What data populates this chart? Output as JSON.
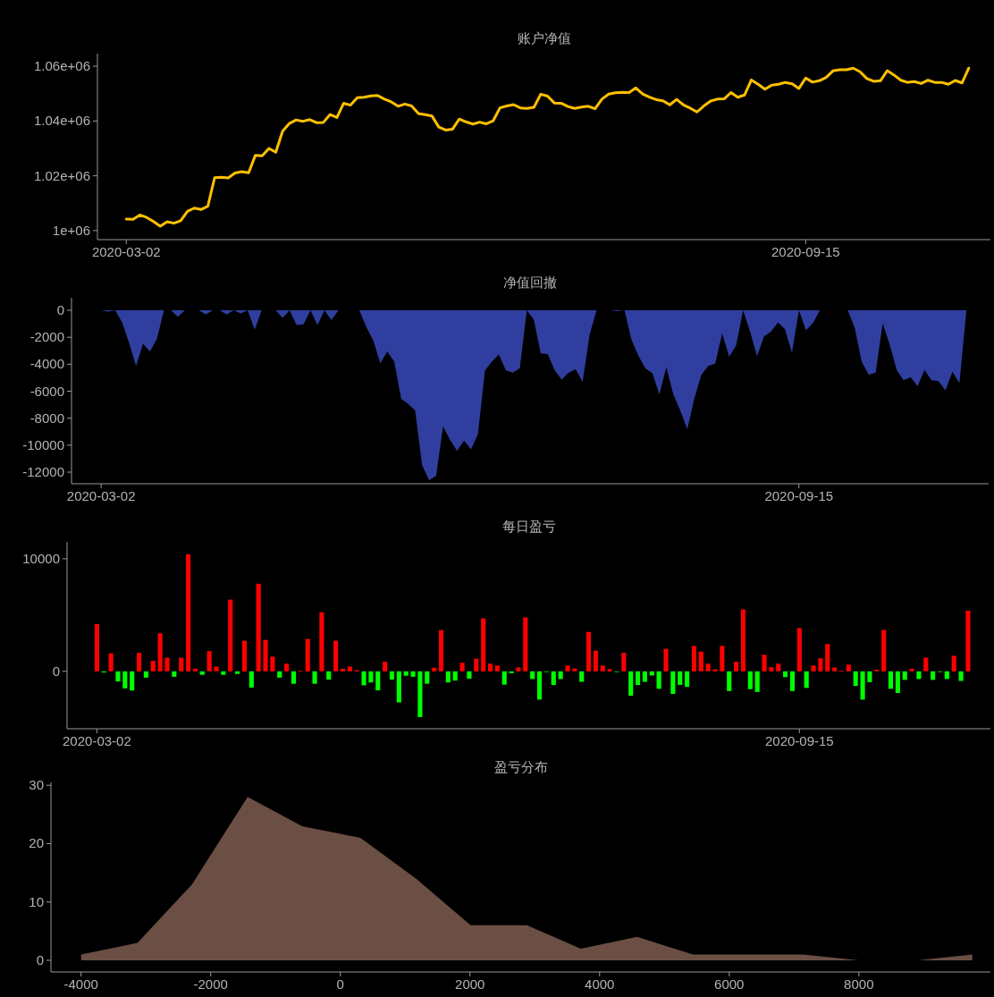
{
  "chart_data": [
    {
      "type": "line",
      "title": "账户净值",
      "categories": [
        "2020-03-02",
        null,
        null,
        null,
        null,
        null,
        null,
        null,
        null,
        null,
        null,
        null,
        null,
        null,
        null,
        null,
        null,
        null,
        null,
        null,
        null,
        null,
        null,
        null,
        null,
        null,
        null,
        null,
        null,
        null,
        null,
        null,
        null,
        null,
        null,
        null,
        null,
        null,
        null,
        null,
        null,
        null,
        null,
        null,
        null,
        null,
        null,
        null,
        null,
        null,
        null,
        null,
        null,
        null,
        null,
        null,
        null,
        null,
        null,
        null,
        null,
        null,
        null,
        null,
        null,
        null,
        null,
        null,
        null,
        null,
        null,
        null,
        null,
        null,
        null,
        null,
        null,
        null,
        null,
        null,
        null,
        null,
        null,
        null,
        null,
        null,
        null,
        null,
        null,
        null,
        null,
        null,
        null,
        null,
        null,
        null,
        null,
        null,
        null,
        null,
        "2020-09-15",
        null,
        null,
        null,
        null,
        null,
        null,
        null,
        null,
        null,
        null,
        null,
        null,
        null,
        null,
        null,
        null,
        null,
        null,
        null,
        null,
        null,
        null,
        null,
        null
      ],
      "series": [
        {
          "color": "#ffc000",
          "values": [
            1004200,
            1004100,
            1005700,
            1004800,
            1003300,
            1001600,
            1003200,
            1002700,
            1003600,
            1007000,
            1008200,
            1007700,
            1008900,
            1019300,
            1019500,
            1019200,
            1021000,
            1021500,
            1021100,
            1027500,
            1027300,
            1030000,
            1028600,
            1036300,
            1039100,
            1040400,
            1039900,
            1040500,
            1039400,
            1039500,
            1042400,
            1041300,
            1046500,
            1045800,
            1048500,
            1048700,
            1049200,
            1049300,
            1048000,
            1047000,
            1045400,
            1046200,
            1045500,
            1042700,
            1042300,
            1041800,
            1037800,
            1036700,
            1037000,
            1040700,
            1039700,
            1038900,
            1039600,
            1039000,
            1040100,
            1044800,
            1045500,
            1046000,
            1044800,
            1044600,
            1045000,
            1049800,
            1049100,
            1046600,
            1046500,
            1045300,
            1044600,
            1045100,
            1045400,
            1044500,
            1048000,
            1049800,
            1050300,
            1050500,
            1050400,
            1052100,
            1049900,
            1048700,
            1047800,
            1047400,
            1045900,
            1047900,
            1045900,
            1044700,
            1043300,
            1045500,
            1047300,
            1048000,
            1048100,
            1050400,
            1048700,
            1049500,
            1055000,
            1053400,
            1051600,
            1053100,
            1053400,
            1054100,
            1053600,
            1051900,
            1055700,
            1054200,
            1054700,
            1055900,
            1058300,
            1058700,
            1058700,
            1059300,
            1058000,
            1055500,
            1054500,
            1054700,
            1058400,
            1056800,
            1054900,
            1054100,
            1054400,
            1053700,
            1054900,
            1054100,
            1054100,
            1053400,
            1054800,
            1053900,
            1059300
          ]
        }
      ],
      "ylim": [
        996700,
        1064600
      ],
      "yticks": [
        {
          "value": 1000000,
          "label": "1e+06"
        },
        {
          "value": 1020000,
          "label": "1.02e+06"
        },
        {
          "value": 1040000,
          "label": "1.04e+06"
        },
        {
          "value": 1060000,
          "label": "1.06e+06"
        }
      ],
      "line_style": "solid",
      "marker": "none"
    },
    {
      "type": "area",
      "title": "净值回撤",
      "categories": [
        "2020-03-02",
        null,
        null,
        null,
        null,
        null,
        null,
        null,
        null,
        null,
        null,
        null,
        null,
        null,
        null,
        null,
        null,
        null,
        null,
        null,
        null,
        null,
        null,
        null,
        null,
        null,
        null,
        null,
        null,
        null,
        null,
        null,
        null,
        null,
        null,
        null,
        null,
        null,
        null,
        null,
        null,
        null,
        null,
        null,
        null,
        null,
        null,
        null,
        null,
        null,
        null,
        null,
        null,
        null,
        null,
        null,
        null,
        null,
        null,
        null,
        null,
        null,
        null,
        null,
        null,
        null,
        null,
        null,
        null,
        null,
        null,
        null,
        null,
        null,
        null,
        null,
        null,
        null,
        null,
        null,
        null,
        null,
        null,
        null,
        null,
        null,
        null,
        null,
        null,
        null,
        null,
        null,
        null,
        null,
        null,
        null,
        null,
        null,
        null,
        null,
        "2020-09-15",
        null,
        null,
        null,
        null,
        null,
        null,
        null,
        null,
        null,
        null,
        null,
        null,
        null,
        null,
        null,
        null,
        null,
        null,
        null,
        null,
        null,
        null,
        null,
        null
      ],
      "series": [
        {
          "color": "#303f9f",
          "values": [
            0,
            -100,
            0,
            -900,
            -2420,
            -4120,
            -2480,
            -3040,
            -2110,
            0,
            0,
            -480,
            0,
            0,
            0,
            -310,
            0,
            0,
            -310,
            0,
            -230,
            0,
            -1440,
            0,
            0,
            0,
            -560,
            0,
            -1100,
            -1040,
            0,
            -1100,
            0,
            -730,
            0,
            0,
            0,
            0,
            -1240,
            -2230,
            -3920,
            -3070,
            -3800,
            -6560,
            -6950,
            -7430,
            -11490,
            -12590,
            -12280,
            -8610,
            -9600,
            -10420,
            -9660,
            -10310,
            -9180,
            -4470,
            -3790,
            -3280,
            -4460,
            -4630,
            -4290,
            0,
            -680,
            -3190,
            -3250,
            -4460,
            -5140,
            -4630,
            -4380,
            -5310,
            -1810,
            0,
            0,
            0,
            -60,
            0,
            -2170,
            -3380,
            -4310,
            -4680,
            -6230,
            -4230,
            -6230,
            -7440,
            -8820,
            -6560,
            -4810,
            -4130,
            -3960,
            -1700,
            -3450,
            -2600,
            0,
            -1580,
            -3410,
            -1940,
            -1570,
            -890,
            -1400,
            -3150,
            0,
            -1470,
            -960,
            0,
            0,
            0,
            0,
            0,
            -1300,
            -3810,
            -4770,
            -4630,
            -960,
            -2510,
            -4430,
            -5190,
            -4960,
            -5640,
            -4430,
            -5190,
            -5250,
            -5930,
            -4550,
            -5400,
            0
          ]
        }
      ],
      "ylim": [
        -12860,
        930
      ],
      "yticks": [
        -12000,
        -10000,
        -8000,
        -6000,
        -4000,
        -2000,
        0
      ]
    },
    {
      "type": "bar",
      "title": "每日盈亏",
      "categories": [
        "2020-03-02",
        null,
        null,
        null,
        null,
        null,
        null,
        null,
        null,
        null,
        null,
        null,
        null,
        null,
        null,
        null,
        null,
        null,
        null,
        null,
        null,
        null,
        null,
        null,
        null,
        null,
        null,
        null,
        null,
        null,
        null,
        null,
        null,
        null,
        null,
        null,
        null,
        null,
        null,
        null,
        null,
        null,
        null,
        null,
        null,
        null,
        null,
        null,
        null,
        null,
        null,
        null,
        null,
        null,
        null,
        null,
        null,
        null,
        null,
        null,
        null,
        null,
        null,
        null,
        null,
        null,
        null,
        null,
        null,
        null,
        null,
        null,
        null,
        null,
        null,
        null,
        null,
        null,
        null,
        null,
        null,
        null,
        null,
        null,
        null,
        null,
        null,
        null,
        null,
        null,
        null,
        null,
        null,
        null,
        null,
        null,
        null,
        null,
        null,
        null,
        "2020-09-15",
        null,
        null,
        null,
        null,
        null,
        null,
        null,
        null,
        null,
        null,
        null,
        null,
        null,
        null,
        null,
        null,
        null,
        null,
        null,
        null,
        null,
        null,
        null,
        null
      ],
      "values": [
        4200,
        -100,
        1600,
        -900,
        -1520,
        -1700,
        1640,
        -560,
        930,
        3380,
        1210,
        -480,
        1210,
        10400,
        230,
        -310,
        1800,
        420,
        -310,
        6370,
        -230,
        2710,
        -1440,
        7780,
        2790,
        1300,
        -560,
        680,
        -1100,
        60,
        2880,
        -1100,
        5250,
        -730,
        2710,
        230,
        420,
        110,
        -1240,
        -990,
        -1690,
        850,
        -730,
        -2760,
        -390,
        -480,
        -4060,
        -1100,
        310,
        3670,
        -990,
        -820,
        760,
        -650,
        1130,
        4710,
        680,
        510,
        -1180,
        -170,
        340,
        4790,
        -680,
        -2510,
        -60,
        -1210,
        -680,
        510,
        250,
        -930,
        3500,
        1830,
        510,
        200,
        -60,
        1660,
        -2170,
        -1210,
        -930,
        -370,
        -1550,
        2000,
        -2000,
        -1210,
        -1380,
        2260,
        1750,
        680,
        170,
        2260,
        -1750,
        850,
        5500,
        -1580,
        -1830,
        1470,
        370,
        680,
        -510,
        -1750,
        3840,
        -1470,
        510,
        1160,
        2430,
        340,
        60,
        590,
        -1300,
        -2510,
        -960,
        140,
        3670,
        -1550,
        -1920,
        -760,
        230,
        -680,
        1210,
        -760,
        -60,
        -680,
        1380,
        -850,
        5400
      ],
      "colors": [
        "#ff0000",
        "#00ff00",
        "#ff0000",
        "#00ff00",
        "#00ff00",
        "#00ff00",
        "#ff0000",
        "#00ff00",
        "#ff0000",
        "#ff0000",
        "#ff0000",
        "#00ff00",
        "#ff0000",
        "#ff0000",
        "#ff0000",
        "#00ff00",
        "#ff0000",
        "#ff0000",
        "#00ff00",
        "#ff0000",
        "#00ff00",
        "#ff0000",
        "#00ff00",
        "#ff0000",
        "#ff0000",
        "#ff0000",
        "#00ff00",
        "#ff0000",
        "#00ff00",
        "#ff0000",
        "#ff0000",
        "#00ff00",
        "#ff0000",
        "#00ff00",
        "#ff0000",
        "#ff0000",
        "#ff0000",
        "#ff0000",
        "#00ff00",
        "#00ff00",
        "#00ff00",
        "#ff0000",
        "#00ff00",
        "#00ff00",
        "#00ff00",
        "#00ff00",
        "#00ff00",
        "#00ff00",
        "#ff0000",
        "#ff0000",
        "#00ff00",
        "#00ff00",
        "#ff0000",
        "#00ff00",
        "#ff0000",
        "#ff0000",
        "#ff0000",
        "#ff0000",
        "#00ff00",
        "#00ff00",
        "#ff0000",
        "#ff0000",
        "#00ff00",
        "#00ff00",
        "#00ff00",
        "#00ff00",
        "#00ff00",
        "#ff0000",
        "#ff0000",
        "#00ff00",
        "#ff0000",
        "#ff0000",
        "#ff0000",
        "#ff0000",
        "#00ff00",
        "#ff0000",
        "#00ff00",
        "#00ff00",
        "#00ff00",
        "#00ff00",
        "#00ff00",
        "#ff0000",
        "#00ff00",
        "#00ff00",
        "#00ff00",
        "#ff0000",
        "#ff0000",
        "#ff0000",
        "#ff0000",
        "#ff0000",
        "#00ff00",
        "#ff0000",
        "#ff0000",
        "#00ff00",
        "#00ff00",
        "#ff0000",
        "#ff0000",
        "#ff0000",
        "#00ff00",
        "#00ff00",
        "#ff0000",
        "#00ff00",
        "#ff0000",
        "#ff0000",
        "#ff0000",
        "#ff0000",
        "#ff0000",
        "#ff0000",
        "#00ff00",
        "#00ff00",
        "#00ff00",
        "#ff0000",
        "#ff0000",
        "#00ff00",
        "#00ff00",
        "#00ff00",
        "#ff0000",
        "#00ff00",
        "#ff0000",
        "#00ff00",
        "#00ff00",
        "#00ff00",
        "#ff0000",
        "#00ff00",
        "#ff0000"
      ],
      "ylim": [
        -5100,
        11500
      ],
      "yticks": [
        0,
        10000
      ]
    },
    {
      "type": "area",
      "title": "盈亏分布",
      "x": [
        -4000,
        -3130,
        -2290,
        -1430,
        -590,
        310,
        1170,
        2010,
        2880,
        3710,
        4580,
        5440,
        6300,
        7140,
        8000,
        8910,
        9750
      ],
      "series": [
        {
          "color": "#6b4f44",
          "values": [
            1,
            3,
            13,
            28,
            23,
            21,
            14,
            6,
            6,
            2,
            4,
            1,
            1,
            1,
            0,
            0,
            1
          ]
        }
      ],
      "xlim": [
        -4465,
        10030
      ],
      "xticks": [
        -4000,
        -2000,
        0,
        2000,
        4000,
        6000,
        8000
      ],
      "ylim": [
        -2,
        30.5
      ],
      "yticks": [
        0,
        10,
        20,
        30
      ]
    }
  ]
}
